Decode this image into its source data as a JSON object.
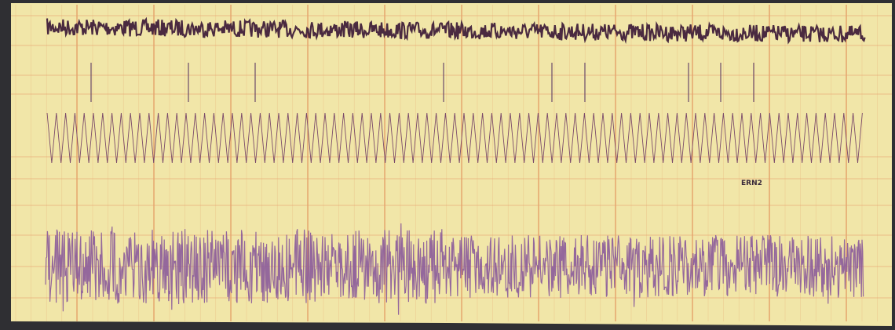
{
  "labels": {
    "station": "ERN2"
  }
}
